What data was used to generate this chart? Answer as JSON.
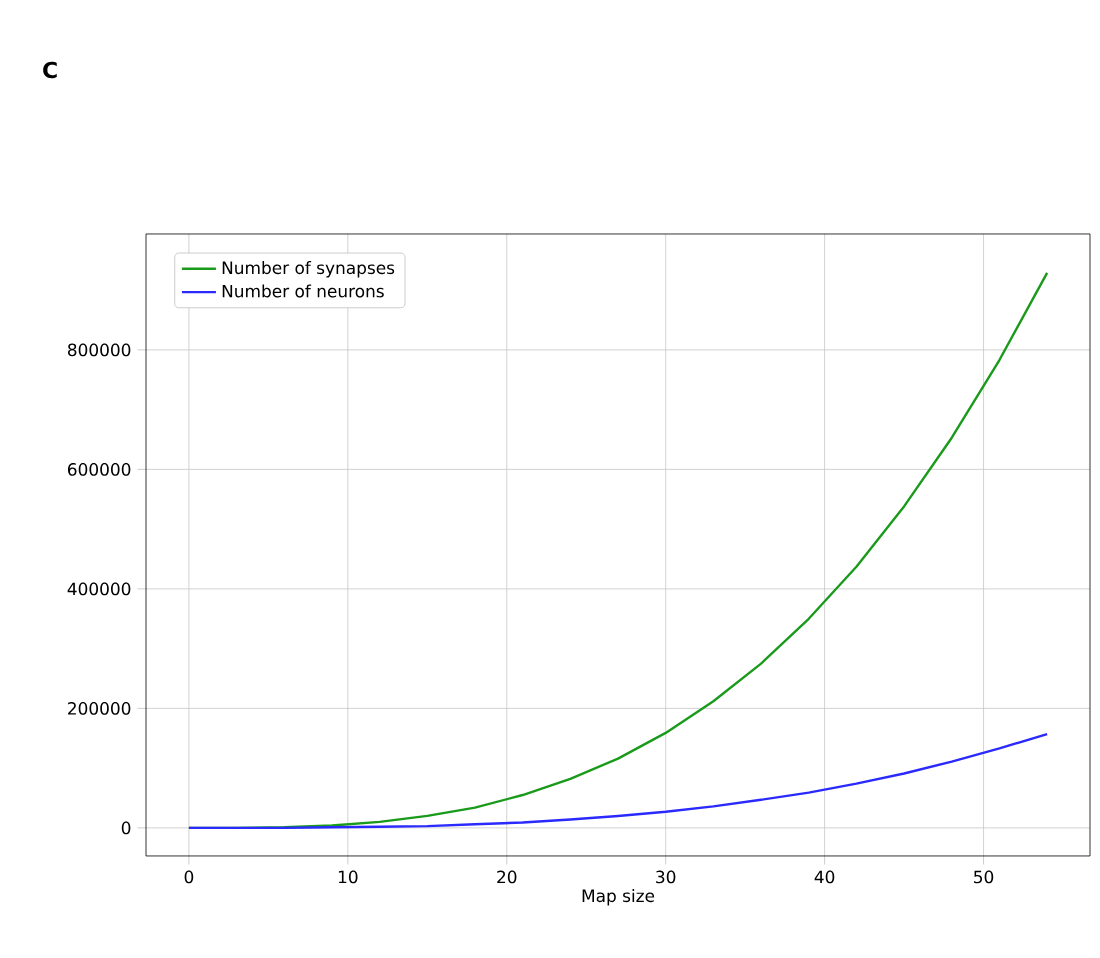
{
  "chart_data": {
    "type": "line",
    "annotations": [
      "C"
    ],
    "xlabel": "Map size",
    "x": [
      0,
      3,
      6,
      9,
      12,
      15,
      18,
      21,
      24,
      27,
      30,
      33,
      36,
      39,
      42,
      45,
      48,
      51,
      54
    ],
    "series": [
      {
        "name": "Number of synapses",
        "color": "#1a9a1a",
        "values": [
          0,
          0,
          1000,
          4000,
          10000,
          20000,
          34000,
          55000,
          82000,
          116000,
          159000,
          212000,
          275000,
          350000,
          437000,
          538000,
          653000,
          783000,
          929000
        ]
      },
      {
        "name": "Number of neurons",
        "color": "#2a2aff",
        "values": [
          0,
          0,
          0,
          1000,
          2000,
          3000,
          6000,
          9000,
          14000,
          20000,
          27000,
          36000,
          47000,
          59000,
          74000,
          91000,
          111000,
          133000,
          157000
        ]
      }
    ],
    "xlim": [
      -2.7,
      56.7
    ],
    "ylim": [
      -47000,
      994000
    ],
    "xticks": [
      0,
      10,
      20,
      30,
      40,
      50
    ],
    "yticks": [
      0,
      200000,
      400000,
      600000,
      800000
    ],
    "grid": true,
    "legend": "top left"
  }
}
